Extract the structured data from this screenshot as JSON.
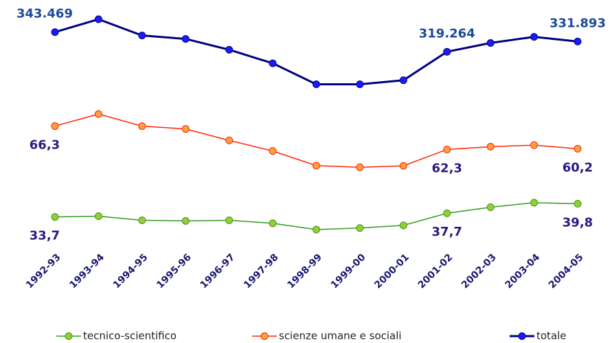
{
  "chart_data": {
    "type": "line",
    "categories": [
      "1992-93",
      "1993-94",
      "1994-95",
      "1995-96",
      "1996-97",
      "1997-98",
      "1998-99",
      "1999-00",
      "2000-01",
      "2001-02",
      "2002-03",
      "2003-04",
      "2004-05"
    ],
    "series": [
      {
        "name": "tecnico-scientifico",
        "color": "#339922",
        "marker_color": "#99cc33",
        "values": [
          33.7,
          32.5,
          32.9,
          33.1,
          34.7,
          35.4,
          35.9,
          36.6,
          37.1,
          37.7,
          38.7,
          39.5,
          39.8
        ],
        "value_labels": [
          "33,7",
          null,
          null,
          null,
          null,
          null,
          null,
          null,
          null,
          "37,7",
          null,
          null,
          "39,8"
        ]
      },
      {
        "name": "scienze umane e sociali",
        "color": "#ff2200",
        "marker_color": "#ffa040",
        "values": [
          66.3,
          67.5,
          67.1,
          66.9,
          65.3,
          64.6,
          64.1,
          63.4,
          62.9,
          62.3,
          61.3,
          60.5,
          60.2
        ],
        "value_labels": [
          "66,3",
          null,
          null,
          null,
          null,
          null,
          null,
          null,
          null,
          "62,3",
          null,
          null,
          "60,2"
        ]
      },
      {
        "name": "totale",
        "color": "#000080",
        "marker_color": "#1a1aff",
        "values": [
          343469,
          359330,
          339300,
          335120,
          321770,
          305070,
          279200,
          279200,
          284200,
          319264,
          330110,
          337630,
          331893
        ],
        "value_labels": [
          "343.469",
          null,
          null,
          null,
          null,
          null,
          null,
          null,
          null,
          "319.264",
          null,
          null,
          "331.893"
        ]
      }
    ],
    "legend": "bottom"
  }
}
